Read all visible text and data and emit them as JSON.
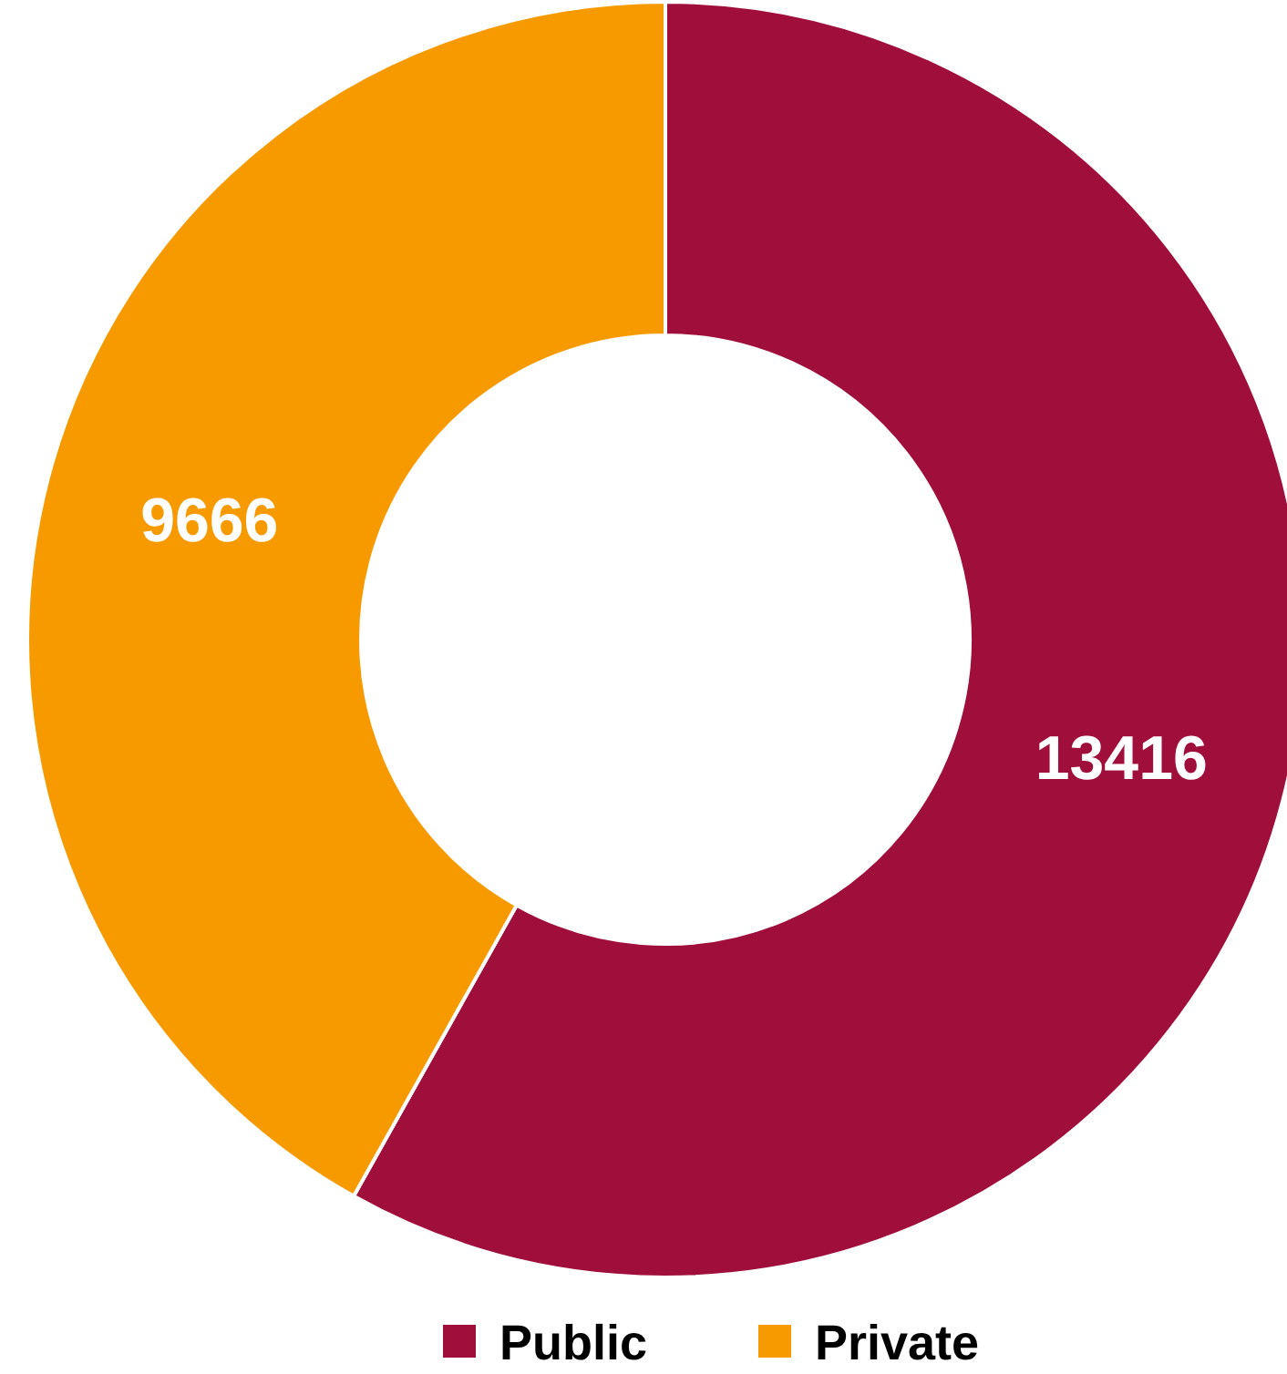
{
  "chart_data": {
    "type": "donut",
    "categories": [
      "Public",
      "Private"
    ],
    "values": [
      13416,
      9666
    ],
    "colors": [
      "#a00e3c",
      "#f79a00"
    ],
    "data_labels": true,
    "legend": "bottom"
  }
}
